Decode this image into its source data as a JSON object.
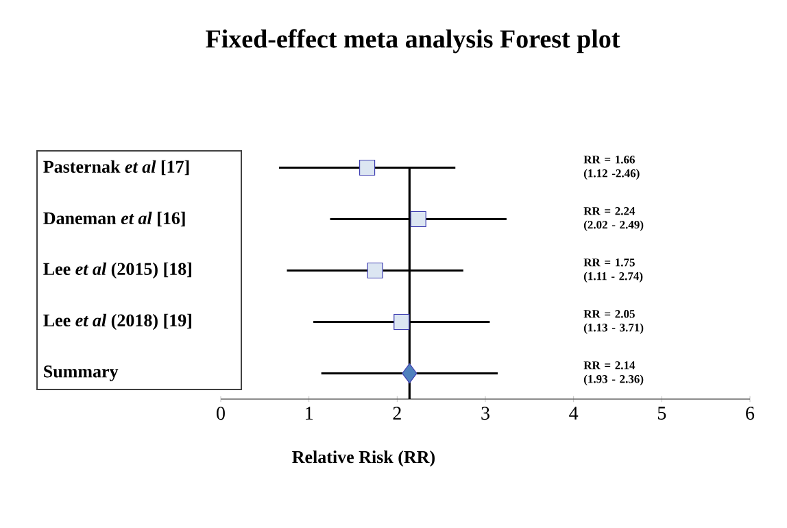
{
  "chart_data": {
    "type": "scatter",
    "orientation": "horizontal",
    "title": "Fixed-effect meta analysis Forest plot",
    "xlabel": "Relative Risk (RR)",
    "categories": [
      "Pasternak *et al* [17]",
      "Daneman *et al* [16]",
      "Lee *et al* (2015) [18]",
      "Lee *et al* (2018) [19]",
      "Summary"
    ],
    "series": [
      {
        "color": "#dce6f2",
        "marker": "square",
        "values": [
          1.66,
          2.24,
          1.75,
          2.05,
          null
        ],
        "errors": [
          1,
          1,
          1,
          1,
          null
        ]
      },
      {
        "color": "#4f81bd",
        "marker": "diamond",
        "values": [
          null,
          null,
          null,
          null,
          2.14
        ],
        "errors": [
          null,
          null,
          null,
          null,
          1
        ]
      }
    ],
    "annotations": [
      "RR = 1.66 (1.12 -2.46)",
      "RR = 2.24 (2.02 - 2.49)",
      "RR = 1.75 (1.11 - 2.74)",
      "RR = 2.05 (1.13 - 3.71)",
      "RR = 2.14 (1.93 - 2.36)"
    ],
    "xlim": [
      0,
      6
    ],
    "xticks": [
      0,
      1,
      2,
      3,
      4,
      5,
      6
    ],
    "ref_lines": [
      {
        "axis": "x",
        "value": 2.14
      }
    ]
  }
}
